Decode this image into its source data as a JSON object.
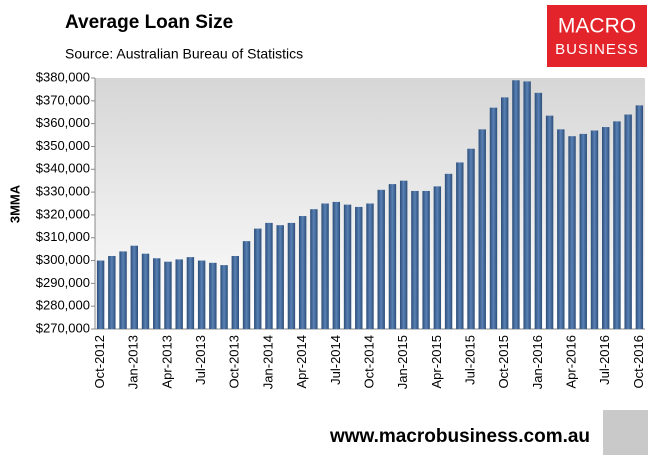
{
  "chart_data": {
    "type": "bar",
    "title": "Average Loan Size",
    "subtitle": "Source: Australian Bureau of Statistics",
    "y_label": "3MMA",
    "logo": [
      "MACRO",
      "BUSINESS"
    ],
    "footer": "www.macrobusiness.com.au",
    "color": "#3d6494",
    "categories": [
      "Oct-2012",
      null,
      null,
      "Jan-2013",
      null,
      null,
      "Apr-2013",
      null,
      null,
      "Jul-2013",
      null,
      null,
      "Oct-2013",
      null,
      null,
      "Jan-2014",
      null,
      null,
      "Apr-2014",
      null,
      null,
      "Jul-2014",
      null,
      null,
      "Oct-2014",
      null,
      null,
      "Jan-2015",
      null,
      null,
      "Apr-2015",
      null,
      null,
      "Jul-2015",
      null,
      null,
      "Oct-2015",
      null,
      null,
      "Jan-2016",
      null,
      null,
      "Apr-2016",
      null,
      null,
      "Jul-2016",
      null,
      null,
      "Oct-2016"
    ],
    "values": [
      300000,
      302000,
      304000,
      306500,
      303000,
      301000,
      299500,
      300500,
      301500,
      300000,
      299000,
      298000,
      302000,
      308500,
      314000,
      316500,
      315500,
      316500,
      319500,
      322500,
      325000,
      325700,
      324500,
      323500,
      325000,
      331000,
      333500,
      335000,
      330500,
      330500,
      332500,
      338000,
      343000,
      349000,
      357500,
      367000,
      371500,
      379000,
      378500,
      373500,
      363500,
      357500,
      354500,
      355500,
      357000,
      358500,
      361000,
      364000,
      368000
    ],
    "ylim": [
      270000,
      380000
    ],
    "yticks": [
      {
        "value": 270000,
        "label": "$270,000"
      },
      {
        "value": 280000,
        "label": "$280,000"
      },
      {
        "value": 290000,
        "label": "$290,000"
      },
      {
        "value": 300000,
        "label": "$300,000"
      },
      {
        "value": 310000,
        "label": "$310,000"
      },
      {
        "value": 320000,
        "label": "$320,000"
      },
      {
        "value": 330000,
        "label": "$330,000"
      },
      {
        "value": 340000,
        "label": "$340,000"
      },
      {
        "value": 350000,
        "label": "$350,000"
      },
      {
        "value": 360000,
        "label": "$360,000"
      },
      {
        "value": 370000,
        "label": "$370,000"
      },
      {
        "value": 380000,
        "label": "$380,000"
      }
    ]
  }
}
